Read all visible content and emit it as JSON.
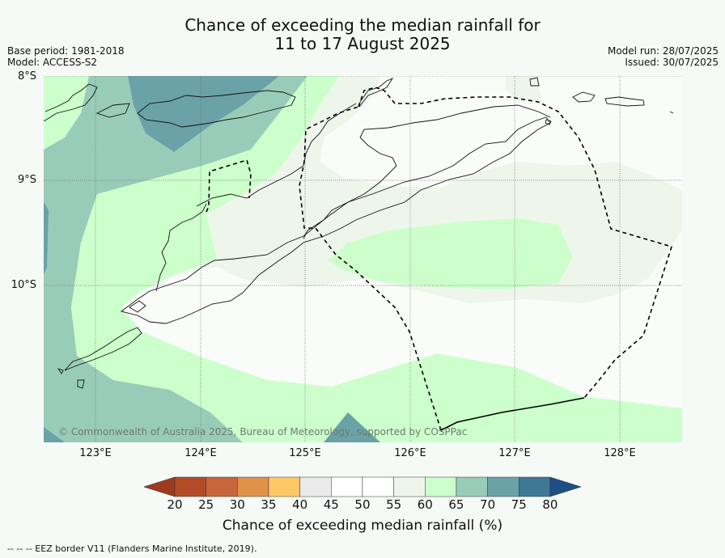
{
  "title": {
    "line1": "Chance of exceeding the median rainfall for",
    "line2": "11 to 17 August 2025"
  },
  "meta": {
    "base_period": "Base period: 1981-2018",
    "model": "Model: ACCESS-S2",
    "model_run": "Model run: 28/07/2025",
    "issued": "Issued: 30/07/2025"
  },
  "axes": {
    "lat_labels": [
      "8°S",
      "9°S",
      "10°S"
    ],
    "lon_labels": [
      "123°E",
      "124°E",
      "125°E",
      "126°E",
      "127°E",
      "128°E"
    ]
  },
  "credit": "© Commonwealth of Australia 2025, Bureau of Meteorology, supported by COSPPac",
  "colorbar": {
    "ticks": [
      "20",
      "25",
      "30",
      "35",
      "40",
      "45",
      "50",
      "55",
      "60",
      "65",
      "70",
      "75",
      "80"
    ],
    "colors": [
      "#a03a1e",
      "#b34b27",
      "#c9653a",
      "#e0924b",
      "#fdc966",
      "#eaeaea",
      "#ffffff",
      "#ffffff",
      "#eef6ec",
      "#ccffcc",
      "#99ccb8",
      "#6aa2a8",
      "#3f7796",
      "#1c4f85"
    ],
    "label": "Chance of exceeding median rainfall (%)"
  },
  "footnote": "--  --  -- EEZ border V11 (Flanders Marine Institute, 2019).",
  "map_colors": {
    "c55_60": "#eef6ec",
    "c50_55": "#f9fcf9",
    "c60_65": "#ccffcc",
    "c65_70": "#99ccb8",
    "c70_75": "#6aa2a8"
  }
}
